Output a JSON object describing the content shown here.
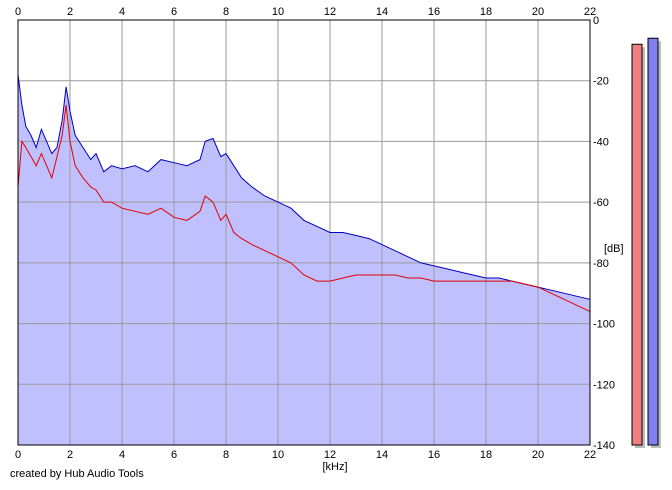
{
  "footer": {
    "credit": "created by Hub Audio Tools"
  },
  "chart_data": {
    "type": "area",
    "xlabel": "[kHz]",
    "ylabel": "[dB]",
    "xlim": [
      0,
      22
    ],
    "ylim": [
      -140,
      0
    ],
    "x_ticks": [
      0,
      2,
      4,
      6,
      8,
      10,
      12,
      14,
      16,
      18,
      20,
      22
    ],
    "y_ticks": [
      0,
      -20,
      -40,
      -60,
      -80,
      -100,
      -120,
      -140
    ],
    "x_tick_labels": [
      "0",
      "2",
      "4",
      "6",
      "8",
      "10",
      "12",
      "14",
      "16",
      "18",
      "20",
      "22"
    ],
    "y_tick_labels": [
      "0",
      "-20",
      "-40",
      "-60",
      "-80",
      "-100",
      "-120",
      "-140"
    ],
    "grid": true,
    "series": [
      {
        "color": "#0000c0",
        "fill": "#c0c0ff",
        "x": [
          0,
          0.15,
          0.3,
          0.5,
          0.7,
          0.9,
          1.1,
          1.3,
          1.5,
          1.7,
          1.85,
          2.0,
          2.2,
          2.5,
          2.8,
          3.0,
          3.3,
          3.6,
          4.0,
          4.5,
          5.0,
          5.5,
          6.0,
          6.5,
          7.0,
          7.2,
          7.5,
          7.8,
          8.0,
          8.3,
          8.6,
          9.0,
          9.5,
          10.0,
          10.5,
          11.0,
          11.5,
          12.0,
          12.5,
          13.0,
          13.5,
          14.0,
          14.5,
          15.0,
          15.5,
          16.0,
          16.5,
          17.0,
          17.5,
          18.0,
          18.5,
          19.0,
          19.5,
          20.0,
          20.5,
          21.0,
          21.5,
          22.0
        ],
        "values": [
          -18,
          -28,
          -35,
          -38,
          -42,
          -36,
          -40,
          -44,
          -42,
          -33,
          -22,
          -30,
          -38,
          -42,
          -46,
          -44,
          -50,
          -48,
          -49,
          -48,
          -50,
          -46,
          -47,
          -48,
          -46,
          -40,
          -39,
          -45,
          -44,
          -48,
          -52,
          -55,
          -58,
          -60,
          -62,
          -66,
          -68,
          -70,
          -70,
          -71,
          -72,
          -74,
          -76,
          -78,
          -80,
          -81,
          -82,
          -83,
          -84,
          -85,
          -85,
          -86,
          -87,
          -88,
          -89,
          -90,
          -91,
          -92
        ]
      },
      {
        "color": "#e00000",
        "x": [
          0,
          0.15,
          0.3,
          0.5,
          0.7,
          0.9,
          1.1,
          1.3,
          1.5,
          1.7,
          1.85,
          2.0,
          2.2,
          2.5,
          2.8,
          3.0,
          3.3,
          3.6,
          4.0,
          4.5,
          5.0,
          5.5,
          6.0,
          6.5,
          7.0,
          7.2,
          7.5,
          7.8,
          8.0,
          8.3,
          8.6,
          9.0,
          9.5,
          10.0,
          10.5,
          11.0,
          11.5,
          12.0,
          12.5,
          13.0,
          13.5,
          14.0,
          14.5,
          15.0,
          15.5,
          16.0,
          16.5,
          17.0,
          17.5,
          18.0,
          18.5,
          19.0,
          19.5,
          20.0,
          20.5,
          21.0,
          21.5,
          22.0
        ],
        "values": [
          -55,
          -40,
          -42,
          -45,
          -48,
          -44,
          -48,
          -52,
          -45,
          -38,
          -28,
          -40,
          -48,
          -52,
          -55,
          -56,
          -60,
          -60,
          -62,
          -63,
          -64,
          -62,
          -65,
          -66,
          -63,
          -58,
          -60,
          -66,
          -64,
          -70,
          -72,
          -74,
          -76,
          -78,
          -80,
          -84,
          -86,
          -86,
          -85,
          -84,
          -84,
          -84,
          -84,
          -85,
          -85,
          -86,
          -86,
          -86,
          -86,
          -86,
          -86,
          -86,
          -87,
          -88,
          -90,
          -92,
          -94,
          -96
        ]
      }
    ],
    "level_meters": [
      {
        "color": "#f08080",
        "value": -8
      },
      {
        "color": "#8080f0",
        "value": -6
      }
    ]
  }
}
